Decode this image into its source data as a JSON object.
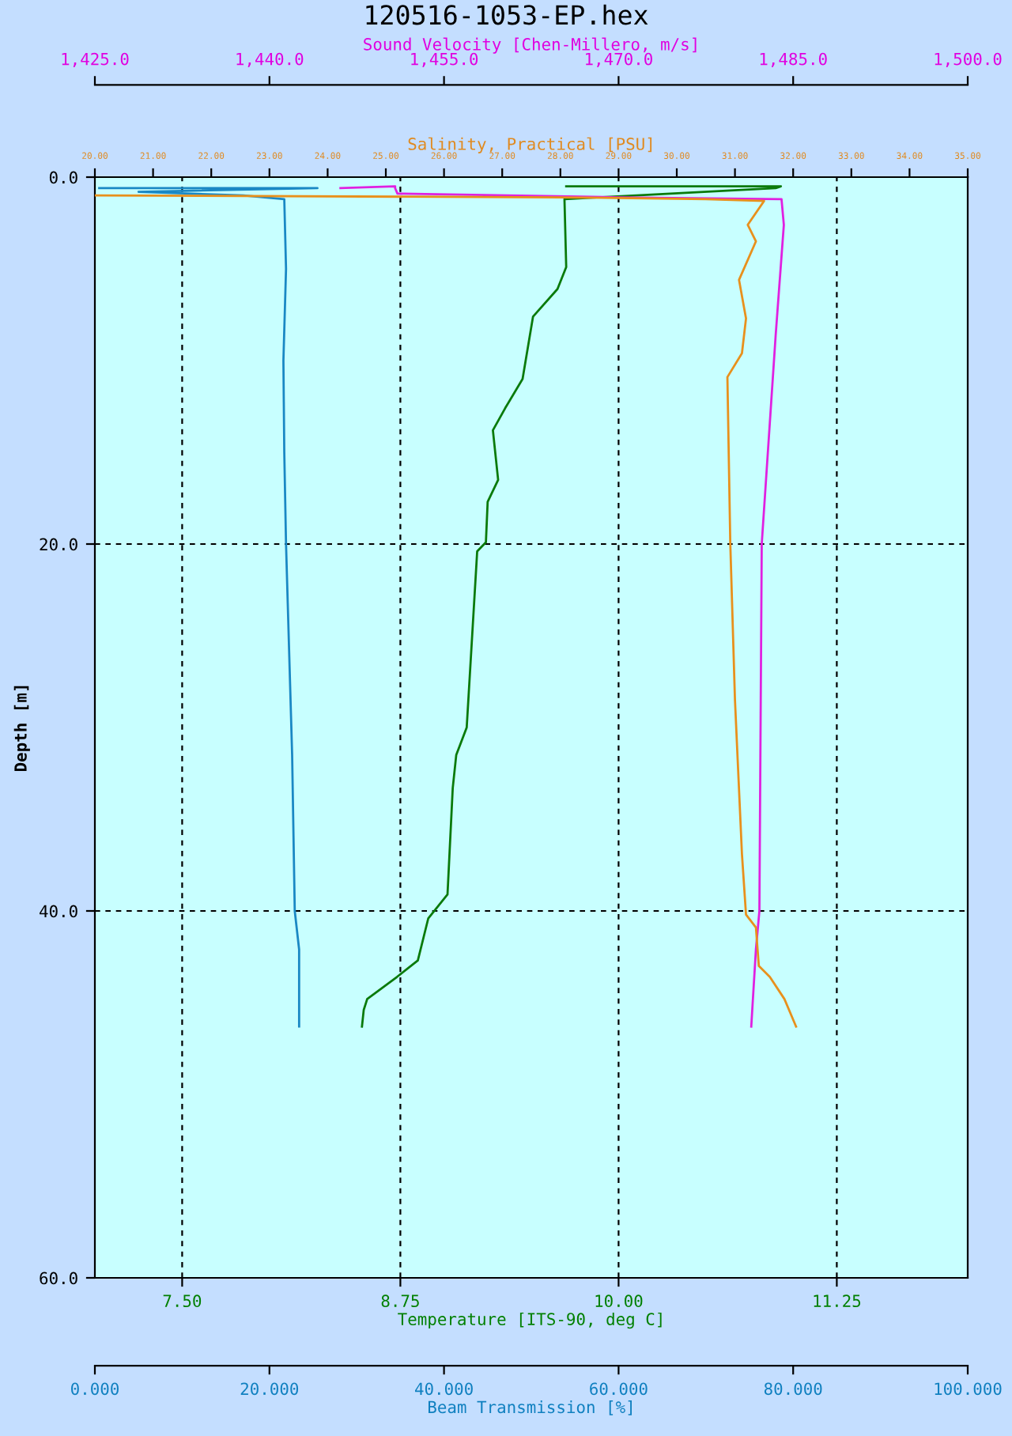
{
  "chart_data": [
    {
      "type": "line",
      "title": "120516-1053-EP.hex",
      "ylabel": "Depth [m]",
      "xlabel": "Temperature [ITS-90, deg C]",
      "x2label": "Sound Velocity [Chen-Millero, m/s]",
      "ylim": [
        60,
        0
      ],
      "yticks": [
        {
          "value": 0,
          "label": "0.0"
        },
        {
          "value": 20,
          "label": "20.0"
        },
        {
          "value": 40,
          "label": "40.0"
        },
        {
          "value": 60,
          "label": "60.0"
        }
      ],
      "xlim": [
        7.0,
        12.0
      ],
      "xticks": [
        {
          "value": 7.5,
          "label": "7.50"
        },
        {
          "value": 8.75,
          "label": "8.75"
        },
        {
          "value": 10.0,
          "label": "10.00"
        },
        {
          "value": 11.25,
          "label": "11.25"
        }
      ],
      "x2lim": [
        1425,
        1500
      ],
      "x2ticks": [
        {
          "value": 1425,
          "label": "1,425.0"
        },
        {
          "value": 1440,
          "label": "1,440.0"
        },
        {
          "value": 1455,
          "label": "1,455.0"
        },
        {
          "value": 1470,
          "label": "1,470.0"
        },
        {
          "value": 1485,
          "label": "1,485.0"
        },
        {
          "value": 1500,
          "label": "1,500.0"
        }
      ],
      "grid": true,
      "series": [
        {
          "color": "#0a7a0a",
          "x": [
            9.7,
            10.93,
            10.9,
            9.69,
            9.7,
            9.65,
            9.51,
            9.45,
            9.35,
            9.28,
            9.31,
            9.25,
            9.24,
            9.19,
            9.13,
            9.07,
            9.05,
            9.02,
            8.91,
            8.85,
            8.73,
            8.56,
            8.54,
            8.53
          ],
          "values": [
            0.5,
            0.5,
            0.6,
            1.2,
            4.9,
            6.1,
            7.6,
            11.0,
            12.6,
            13.8,
            16.5,
            17.7,
            19.9,
            20.4,
            30.0,
            31.5,
            33.3,
            39.1,
            40.4,
            42.7,
            43.6,
            44.8,
            45.4,
            46.3
          ]
        },
        {
          "axis": "x2",
          "color": "#e020e0",
          "x": [
            1446.1,
            1450.8,
            1450.8,
            1451.0,
            1470.0,
            1484.0,
            1484.2,
            1483.5,
            1482.3,
            1482.1,
            1481.8,
            1481.4
          ],
          "values": [
            0.6,
            0.5,
            0.6,
            0.9,
            1.1,
            1.2,
            2.6,
            8.6,
            20.0,
            40.0,
            42.1,
            46.3
          ]
        }
      ]
    },
    {
      "type": "line",
      "xlabel": "Beam Transmission [%]",
      "x2label": "Salinity, Practical [PSU]",
      "ylim": [
        60,
        0
      ],
      "tick_labels": "x",
      "xlim": [
        0,
        100
      ],
      "xticks": [
        {
          "value": 0,
          "label": "0.000"
        },
        {
          "value": 20,
          "label": "20.000"
        },
        {
          "value": 40,
          "label": "40.000"
        },
        {
          "value": 60,
          "label": "60.000"
        },
        {
          "value": 80,
          "label": "80.000"
        },
        {
          "value": 100,
          "label": "100.000"
        }
      ],
      "x2lim": [
        20,
        35
      ],
      "x2ticks": [
        {
          "value": 20,
          "label": "20.00"
        },
        {
          "value": 21,
          "label": "21.00"
        },
        {
          "value": 22,
          "label": "22.00"
        },
        {
          "value": 23,
          "label": "23.00"
        },
        {
          "value": 24,
          "label": "24.00"
        },
        {
          "value": 25,
          "label": "25.00"
        },
        {
          "value": 26,
          "label": "26.00"
        },
        {
          "value": 27,
          "label": "27.00"
        },
        {
          "value": 28,
          "label": "28.00"
        },
        {
          "value": 29,
          "label": "29.00"
        },
        {
          "value": 30,
          "label": "30.00"
        },
        {
          "value": 31,
          "label": "31.00"
        },
        {
          "value": 32,
          "label": "32.00"
        },
        {
          "value": 33,
          "label": "33.00"
        },
        {
          "value": 34,
          "label": "34.00"
        },
        {
          "value": 35,
          "label": "35.00"
        }
      ],
      "series": [
        {
          "color": "#1a88c4",
          "x": [
            0.5,
            25.5,
            5,
            17,
            21.7,
            21.9,
            21.6,
            21.7,
            21.9,
            22.6,
            22.9,
            23.4,
            23.4
          ],
          "values": [
            0.6,
            0.6,
            0.8,
            1.0,
            1.2,
            5,
            10,
            15,
            20,
            31.5,
            40,
            42.1,
            46.3
          ]
        },
        {
          "axis": "x2",
          "color": "#e8901c",
          "x": [
            20.0,
            28.0,
            30.5,
            31.5,
            31.22,
            31.36,
            31.07,
            31.19,
            31.12,
            30.87,
            30.92,
            31.0,
            31.12,
            31.19,
            31.36,
            31.41,
            31.6,
            31.85,
            32.05
          ],
          "values": [
            1.0,
            1.1,
            1.2,
            1.3,
            2.6,
            3.5,
            5.6,
            7.7,
            9.6,
            10.9,
            20.0,
            28.5,
            36.9,
            40.2,
            40.9,
            43.0,
            43.6,
            44.8,
            46.3
          ]
        }
      ]
    }
  ]
}
